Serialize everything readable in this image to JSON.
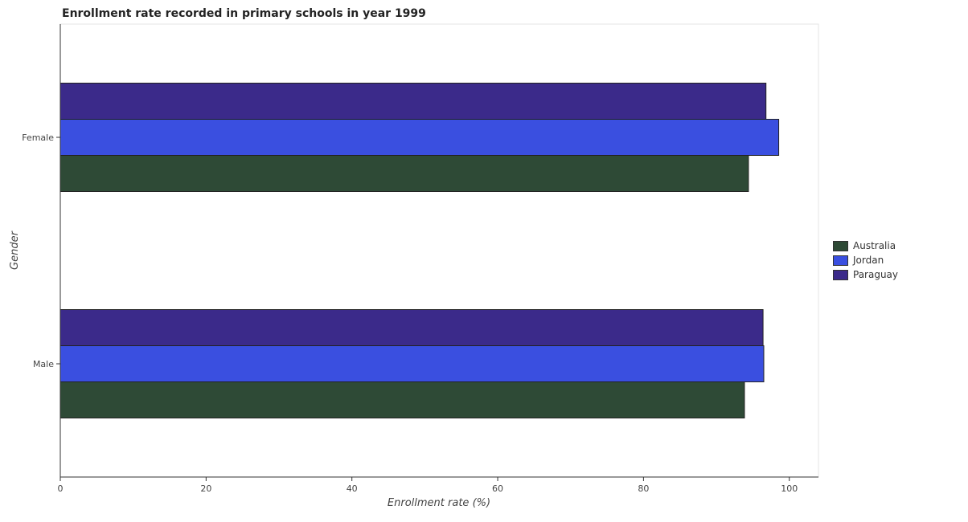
{
  "chart_data": {
    "type": "bar",
    "orientation": "horizontal",
    "title": "Enrollment rate recorded in primary schools in year 1999",
    "xlabel": "Enrollment rate (%)",
    "ylabel": "Gender",
    "categories": [
      "Female",
      "Male"
    ],
    "xlim": [
      0,
      104
    ],
    "xticks": [
      0,
      20,
      40,
      60,
      80,
      100
    ],
    "grid": false,
    "legend_position": "right",
    "series": [
      {
        "name": "Australia",
        "color": "#2e4a36",
        "values": [
          94.4,
          93.85
        ]
      },
      {
        "name": "Jordan",
        "color": "#3a4fe0",
        "values": [
          98.55,
          96.5
        ]
      },
      {
        "name": "Paraguay",
        "color": "#3b2a8a",
        "values": [
          96.8,
          96.4
        ]
      }
    ]
  }
}
